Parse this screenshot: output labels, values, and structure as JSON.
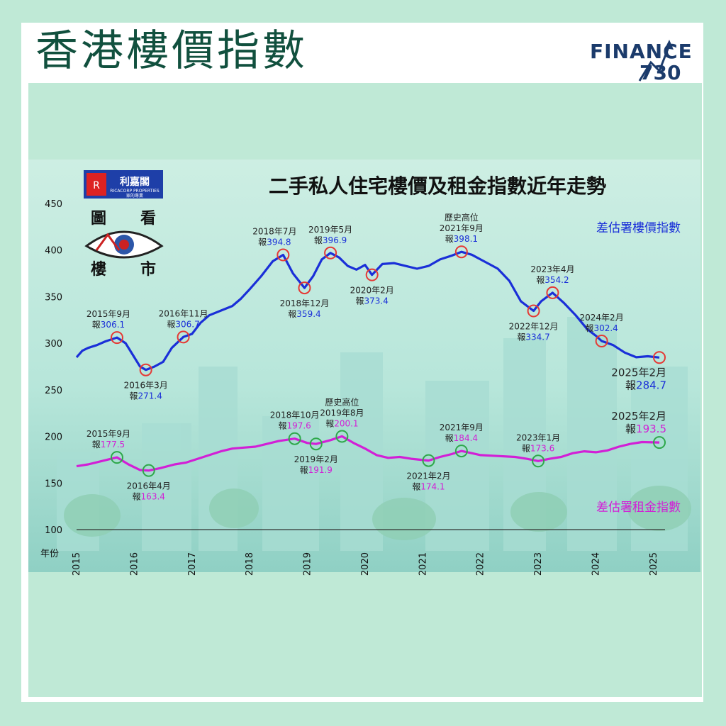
{
  "header": {
    "title": "香港樓價指數",
    "brand_word": "FINANCE",
    "brand_number": "730"
  },
  "logo": {
    "company": "利嘉閣",
    "company_en": "RICACORP PROPERTIES",
    "company_sub": "家的專業",
    "column_chars": [
      "圖",
      "看",
      "樓",
      "市"
    ]
  },
  "colors": {
    "price_line": "#1a2fd8",
    "rent_line": "#d21fd6",
    "price_marker": "#e53935",
    "rent_marker": "#2ea84a",
    "background": "#bfe9d6"
  },
  "chart_data": {
    "type": "line",
    "title": "二手私人住宅樓價及租金指數近年走勢",
    "xlabel": "年份",
    "ylabel": "",
    "ylim": [
      100,
      450
    ],
    "xlim": [
      2015.0,
      2025.1
    ],
    "yticks": [
      100,
      150,
      200,
      250,
      300,
      350,
      400,
      450
    ],
    "xticks": [
      "2015",
      "2016",
      "2017",
      "2018",
      "2019",
      "2020",
      "2021",
      "2022",
      "2023",
      "2024",
      "2025"
    ],
    "grid": false,
    "series": [
      {
        "name": "差估署樓價指數",
        "points": [
          [
            2015.0,
            285
          ],
          [
            2015.1,
            292
          ],
          [
            2015.2,
            295
          ],
          [
            2015.35,
            298
          ],
          [
            2015.5,
            302
          ],
          [
            2015.7,
            306.1
          ],
          [
            2015.85,
            300
          ],
          [
            2016.0,
            285
          ],
          [
            2016.1,
            275
          ],
          [
            2016.2,
            271.4
          ],
          [
            2016.35,
            275
          ],
          [
            2016.5,
            280
          ],
          [
            2016.65,
            295
          ],
          [
            2016.85,
            306.7
          ],
          [
            2017.0,
            310
          ],
          [
            2017.15,
            322
          ],
          [
            2017.3,
            330
          ],
          [
            2017.5,
            335
          ],
          [
            2017.7,
            340
          ],
          [
            2017.85,
            348
          ],
          [
            2018.0,
            358
          ],
          [
            2018.2,
            372
          ],
          [
            2018.4,
            388
          ],
          [
            2018.58,
            394.8
          ],
          [
            2018.75,
            375
          ],
          [
            2018.95,
            359.4
          ],
          [
            2019.1,
            372
          ],
          [
            2019.25,
            390
          ],
          [
            2019.4,
            396.9
          ],
          [
            2019.55,
            392
          ],
          [
            2019.7,
            383
          ],
          [
            2019.85,
            379
          ],
          [
            2020.0,
            384
          ],
          [
            2020.12,
            373.4
          ],
          [
            2020.3,
            385
          ],
          [
            2020.5,
            386
          ],
          [
            2020.7,
            383
          ],
          [
            2020.9,
            380
          ],
          [
            2021.1,
            383
          ],
          [
            2021.3,
            390
          ],
          [
            2021.5,
            394
          ],
          [
            2021.67,
            398.1
          ],
          [
            2021.85,
            395
          ],
          [
            2022.0,
            390
          ],
          [
            2022.15,
            385
          ],
          [
            2022.3,
            380
          ],
          [
            2022.5,
            367
          ],
          [
            2022.7,
            345
          ],
          [
            2022.92,
            334.7
          ],
          [
            2023.05,
            345
          ],
          [
            2023.25,
            354.2
          ],
          [
            2023.45,
            343
          ],
          [
            2023.65,
            330
          ],
          [
            2023.85,
            315
          ],
          [
            2024.0,
            308
          ],
          [
            2024.1,
            302.4
          ],
          [
            2024.3,
            298
          ],
          [
            2024.5,
            290
          ],
          [
            2024.7,
            285
          ],
          [
            2024.9,
            286
          ],
          [
            2025.1,
            284.7
          ]
        ]
      },
      {
        "name": "差估署租金指數",
        "points": [
          [
            2015.0,
            168
          ],
          [
            2015.2,
            170
          ],
          [
            2015.4,
            173
          ],
          [
            2015.6,
            176
          ],
          [
            2015.7,
            177.5
          ],
          [
            2015.9,
            170
          ],
          [
            2016.1,
            164
          ],
          [
            2016.25,
            163.4
          ],
          [
            2016.45,
            166
          ],
          [
            2016.7,
            170
          ],
          [
            2016.9,
            172
          ],
          [
            2017.1,
            176
          ],
          [
            2017.3,
            180
          ],
          [
            2017.5,
            184
          ],
          [
            2017.7,
            187
          ],
          [
            2017.9,
            188
          ],
          [
            2018.1,
            189
          ],
          [
            2018.3,
            192
          ],
          [
            2018.5,
            195
          ],
          [
            2018.78,
            197.6
          ],
          [
            2019.0,
            193
          ],
          [
            2019.15,
            191.9
          ],
          [
            2019.4,
            196
          ],
          [
            2019.6,
            200.1
          ],
          [
            2019.8,
            193
          ],
          [
            2020.0,
            187
          ],
          [
            2020.2,
            180
          ],
          [
            2020.4,
            177
          ],
          [
            2020.6,
            178
          ],
          [
            2020.8,
            176
          ],
          [
            2021.1,
            174.1
          ],
          [
            2021.3,
            178
          ],
          [
            2021.5,
            181
          ],
          [
            2021.67,
            184.4
          ],
          [
            2021.85,
            182
          ],
          [
            2022.0,
            180
          ],
          [
            2022.3,
            179
          ],
          [
            2022.6,
            178
          ],
          [
            2022.8,
            176
          ],
          [
            2023.0,
            173.6
          ],
          [
            2023.2,
            176
          ],
          [
            2023.4,
            178
          ],
          [
            2023.6,
            182
          ],
          [
            2023.8,
            184
          ],
          [
            2024.0,
            183
          ],
          [
            2024.2,
            185
          ],
          [
            2024.4,
            189
          ],
          [
            2024.6,
            192
          ],
          [
            2024.8,
            194
          ],
          [
            2025.1,
            193.5
          ]
        ]
      }
    ],
    "annotations": [
      {
        "series": 0,
        "x": 2015.7,
        "y": 306.1,
        "line1": "2015年9月",
        "prefix": "報",
        "value": "306.1",
        "pos": "above-left"
      },
      {
        "series": 0,
        "x": 2016.2,
        "y": 271.4,
        "line1": "2016年3月",
        "prefix": "報",
        "value": "271.4",
        "pos": "below"
      },
      {
        "series": 0,
        "x": 2016.85,
        "y": 306.7,
        "line1": "2016年11月",
        "prefix": "報",
        "value": "306.7",
        "pos": "above"
      },
      {
        "series": 0,
        "x": 2018.58,
        "y": 394.8,
        "line1": "2018年7月",
        "prefix": "報",
        "value": "394.8",
        "pos": "above-left"
      },
      {
        "series": 0,
        "x": 2018.95,
        "y": 359.4,
        "line1": "2018年12月",
        "prefix": "報",
        "value": "359.4",
        "pos": "below"
      },
      {
        "series": 0,
        "x": 2019.4,
        "y": 396.9,
        "line1": "2019年5月",
        "prefix": "報",
        "value": "396.9",
        "pos": "above"
      },
      {
        "series": 0,
        "x": 2020.12,
        "y": 373.4,
        "line1": "2020年2月",
        "prefix": "報",
        "value": "373.4",
        "pos": "below"
      },
      {
        "series": 0,
        "x": 2021.67,
        "y": 398.1,
        "line0": "歷史高位",
        "line1": "2021年9月",
        "prefix": "報",
        "value": "398.1",
        "pos": "above"
      },
      {
        "series": 0,
        "x": 2022.92,
        "y": 334.7,
        "line1": "2022年12月",
        "prefix": "報",
        "value": "334.7",
        "pos": "below"
      },
      {
        "series": 0,
        "x": 2023.25,
        "y": 354.2,
        "line1": "2023年4月",
        "prefix": "報",
        "value": "354.2",
        "pos": "above"
      },
      {
        "series": 0,
        "x": 2024.1,
        "y": 302.4,
        "line1": "2024年2月",
        "prefix": "報",
        "value": "302.4",
        "pos": "above"
      },
      {
        "series": 0,
        "x": 2025.1,
        "y": 284.7,
        "line1": "2025年2月",
        "prefix": "報",
        "value": "284.7",
        "pos": "below-big"
      },
      {
        "series": 1,
        "x": 2015.7,
        "y": 177.5,
        "line1": "2015年9月",
        "prefix": "報",
        "value": "177.5",
        "pos": "above-left"
      },
      {
        "series": 1,
        "x": 2016.25,
        "y": 163.4,
        "line1": "2016年4月",
        "prefix": "報",
        "value": "163.4",
        "pos": "below"
      },
      {
        "series": 1,
        "x": 2018.78,
        "y": 197.6,
        "line1": "2018年10月",
        "prefix": "報",
        "value": "197.6",
        "pos": "above"
      },
      {
        "series": 1,
        "x": 2019.15,
        "y": 191.9,
        "line1": "2019年2月",
        "prefix": "報",
        "value": "191.9",
        "pos": "below"
      },
      {
        "series": 1,
        "x": 2019.6,
        "y": 200.1,
        "line0": "歷史高位",
        "line1": "2019年8月",
        "prefix": "報",
        "value": "200.1",
        "pos": "above"
      },
      {
        "series": 1,
        "x": 2021.1,
        "y": 174.1,
        "line1": "2021年2月",
        "prefix": "報",
        "value": "174.1",
        "pos": "below"
      },
      {
        "series": 1,
        "x": 2021.67,
        "y": 184.4,
        "line1": "2021年9月",
        "prefix": "報",
        "value": "184.4",
        "pos": "above"
      },
      {
        "series": 1,
        "x": 2023.0,
        "y": 173.6,
        "line1": "2023年1月",
        "prefix": "報",
        "value": "173.6",
        "pos": "above"
      },
      {
        "series": 1,
        "x": 2025.1,
        "y": 193.5,
        "line1": "2025年2月",
        "prefix": "報",
        "value": "193.5",
        "pos": "above-big"
      }
    ]
  }
}
